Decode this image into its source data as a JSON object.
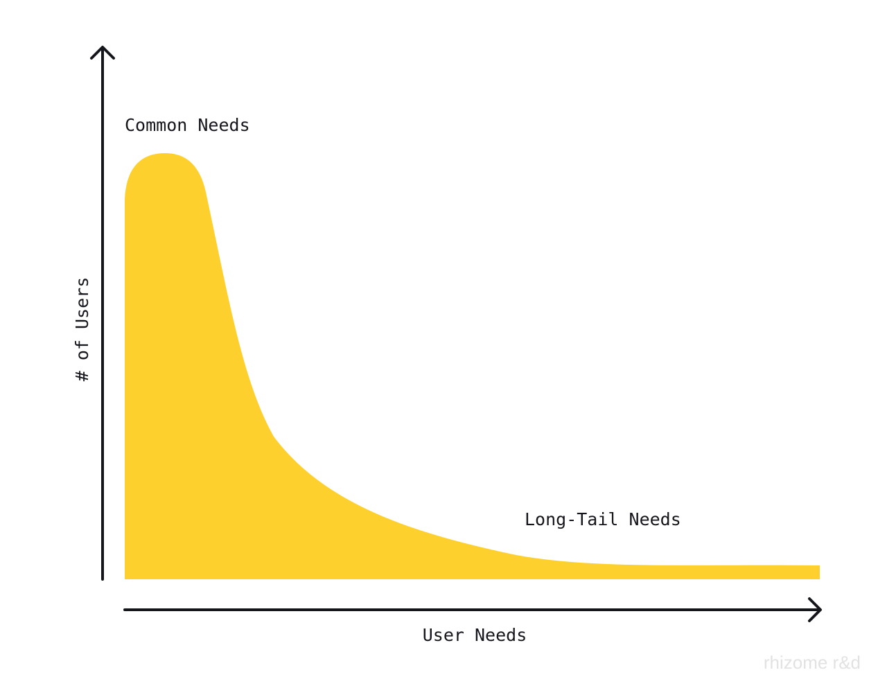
{
  "y_axis": {
    "label": "# of Users"
  },
  "x_axis": {
    "label": "User Needs"
  },
  "annotations": [
    "Common Needs",
    "Long-Tail Needs"
  ],
  "watermark": "rhizome r&d"
}
